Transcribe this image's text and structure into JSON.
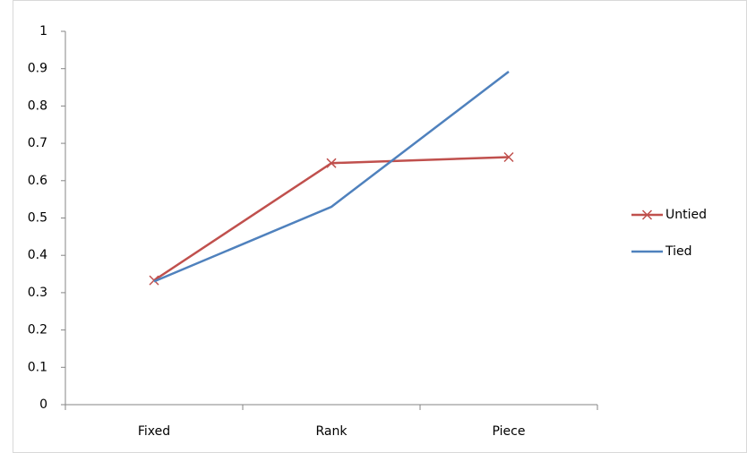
{
  "chart_data": {
    "type": "line",
    "categories": [
      "Fixed",
      "Rank",
      "Piece"
    ],
    "series": [
      {
        "name": "Untied",
        "color": "#c0504d",
        "marker": "x",
        "values": [
          0.333,
          0.647,
          0.663
        ]
      },
      {
        "name": "Tied",
        "color": "#4f81bd",
        "marker": "none",
        "values": [
          0.33,
          0.53,
          0.892
        ]
      }
    ],
    "ylim": [
      0,
      1
    ],
    "yticks": [
      0,
      0.1,
      0.2,
      0.3,
      0.4,
      0.5,
      0.6,
      0.7,
      0.8,
      0.9,
      1
    ],
    "grid": false,
    "legend": "right"
  }
}
